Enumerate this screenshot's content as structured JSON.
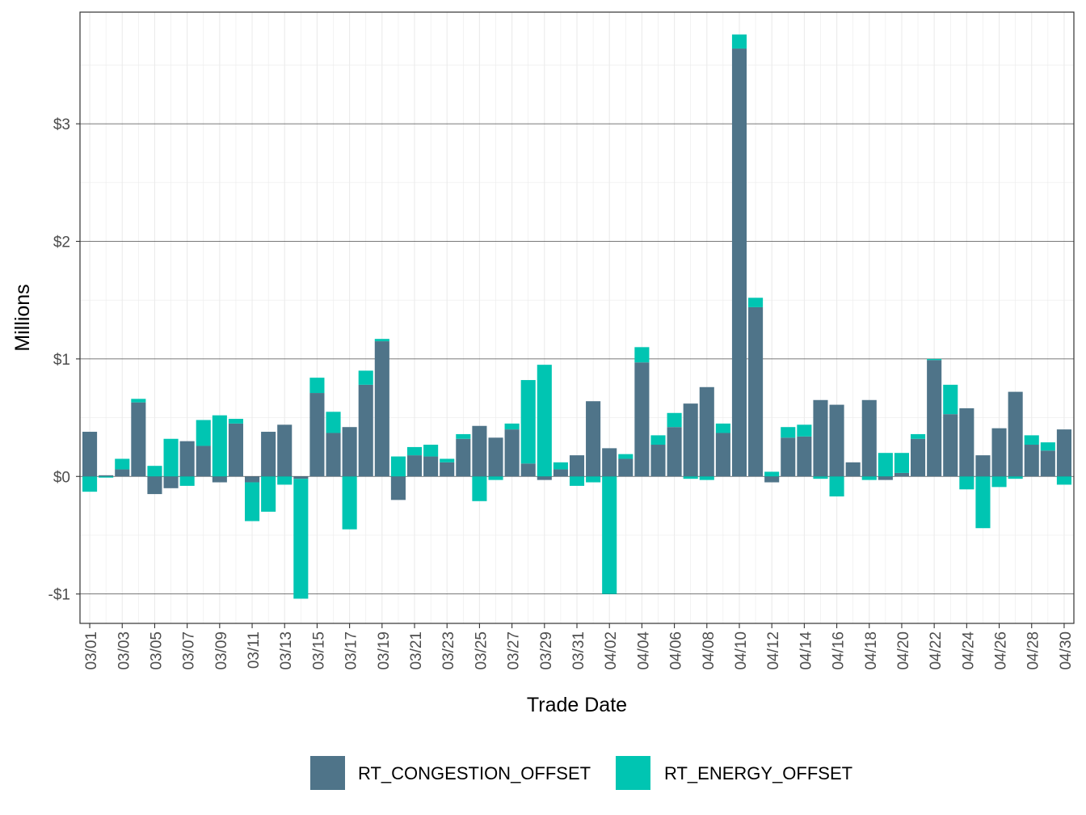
{
  "chart_data": {
    "type": "bar",
    "stacking": "diverging-stacked",
    "xlabel": "Trade Date",
    "ylabel": "Millions",
    "ylim": [
      -1.25,
      3.95
    ],
    "y_ticks": [
      -1,
      0,
      1,
      2,
      3
    ],
    "y_tick_labels": [
      "-$1",
      "$0",
      "$1",
      "$2",
      "$3"
    ],
    "x_tick_labels": [
      "03/01",
      "03/03",
      "03/05",
      "03/07",
      "03/09",
      "03/11",
      "03/13",
      "03/15",
      "03/17",
      "03/19",
      "03/21",
      "03/23",
      "03/25",
      "03/27",
      "03/29",
      "03/31",
      "04/02",
      "04/04",
      "04/06",
      "04/08",
      "04/10",
      "04/12",
      "04/14",
      "04/16",
      "04/18",
      "04/20",
      "04/22",
      "04/24",
      "04/26",
      "04/28",
      "04/30"
    ],
    "categories": [
      "03/01",
      "03/02",
      "03/03",
      "03/04",
      "03/05",
      "03/06",
      "03/07",
      "03/08",
      "03/09",
      "03/10",
      "03/11",
      "03/12",
      "03/13",
      "03/14",
      "03/15",
      "03/16",
      "03/17",
      "03/18",
      "03/19",
      "03/20",
      "03/21",
      "03/22",
      "03/23",
      "03/24",
      "03/25",
      "03/26",
      "03/27",
      "03/28",
      "03/29",
      "03/30",
      "03/31",
      "04/01",
      "04/02",
      "04/03",
      "04/04",
      "04/05",
      "04/06",
      "04/07",
      "04/08",
      "04/09",
      "04/10",
      "04/11",
      "04/12",
      "04/13",
      "04/14",
      "04/15",
      "04/16",
      "04/17",
      "04/18",
      "04/19",
      "04/20",
      "04/21",
      "04/22",
      "04/23",
      "04/24",
      "04/25",
      "04/26",
      "04/27",
      "04/28",
      "04/29",
      "04/30"
    ],
    "series": [
      {
        "name": "RT_CONGESTION_OFFSET",
        "color": "#4F7489",
        "values": [
          0.38,
          0.01,
          0.06,
          0.63,
          -0.15,
          -0.1,
          0.3,
          0.26,
          -0.05,
          0.45,
          -0.05,
          0.38,
          0.44,
          -0.02,
          0.71,
          0.37,
          0.42,
          0.78,
          1.15,
          -0.2,
          0.18,
          0.17,
          0.12,
          0.32,
          0.43,
          0.33,
          0.4,
          0.11,
          -0.03,
          0.06,
          0.18,
          0.64,
          0.24,
          0.15,
          0.97,
          0.27,
          0.42,
          0.62,
          0.76,
          0.37,
          3.64,
          1.44,
          -0.05,
          0.33,
          0.34,
          0.65,
          0.61,
          0.12,
          0.65,
          -0.03,
          0.03,
          0.32,
          0.99,
          0.53,
          0.58,
          0.18,
          0.41,
          0.72,
          0.27,
          0.22,
          0.4
        ]
      },
      {
        "name": "RT_ENERGY_OFFSET",
        "color": "#00C5B2",
        "values": [
          -0.13,
          -0.01,
          0.09,
          0.03,
          0.09,
          0.32,
          -0.08,
          0.22,
          0.52,
          0.04,
          -0.33,
          -0.3,
          -0.07,
          -1.02,
          0.13,
          0.18,
          -0.45,
          0.12,
          0.02,
          0.17,
          0.07,
          0.1,
          0.03,
          0.04,
          -0.21,
          -0.03,
          0.05,
          0.71,
          0.95,
          0.06,
          -0.08,
          -0.05,
          -1.0,
          0.04,
          0.13,
          0.08,
          0.12,
          -0.02,
          -0.03,
          0.08,
          0.12,
          0.08,
          0.04,
          0.09,
          0.1,
          -0.02,
          -0.17,
          0.0,
          -0.03,
          0.2,
          0.17,
          0.04,
          0.01,
          0.25,
          -0.11,
          -0.44,
          -0.09,
          -0.02,
          0.08,
          0.07,
          -0.07
        ]
      }
    ],
    "legend": {
      "position": "bottom",
      "entries": [
        "RT_CONGESTION_OFFSET",
        "RT_ENERGY_OFFSET"
      ]
    },
    "grid": true
  }
}
